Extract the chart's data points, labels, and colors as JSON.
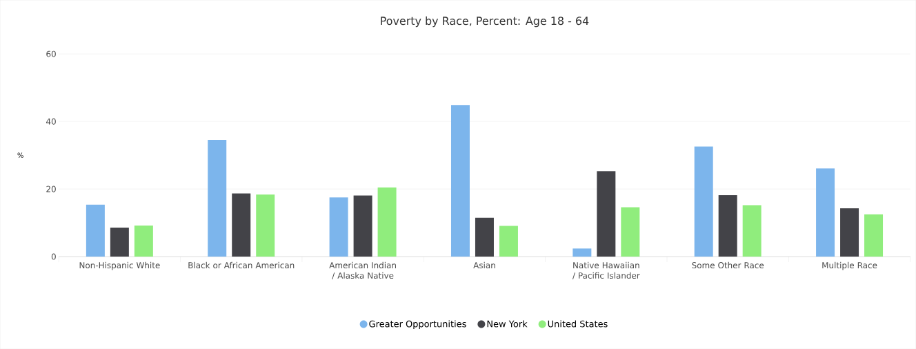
{
  "chart_data": {
    "type": "bar",
    "title": "Poverty by Race, Percent: Age 18 - 64",
    "ylabel": "%",
    "categories": [
      "Non-Hispanic White",
      "Black or African American",
      "American Indian / Alaska Native",
      "Asian",
      "Native Hawaiian / Pacific Islander",
      "Some Other Race",
      "Multiple Race"
    ],
    "series": [
      {
        "name": "Greater Opportunities",
        "color": "#7cb5ec",
        "values": [
          15.4,
          34.5,
          17.5,
          44.9,
          2.4,
          32.6,
          26.1
        ]
      },
      {
        "name": "New York",
        "color": "#434348",
        "values": [
          8.6,
          18.7,
          18.1,
          11.5,
          25.3,
          18.2,
          14.3
        ]
      },
      {
        "name": "United States",
        "color": "#90ed7d",
        "values": [
          9.2,
          18.4,
          20.5,
          9.1,
          14.6,
          15.2,
          12.5
        ]
      }
    ],
    "ylim": [
      0,
      60
    ],
    "yticks": [
      0,
      20,
      40,
      60
    ],
    "grid": "y",
    "legend": "bottom"
  }
}
